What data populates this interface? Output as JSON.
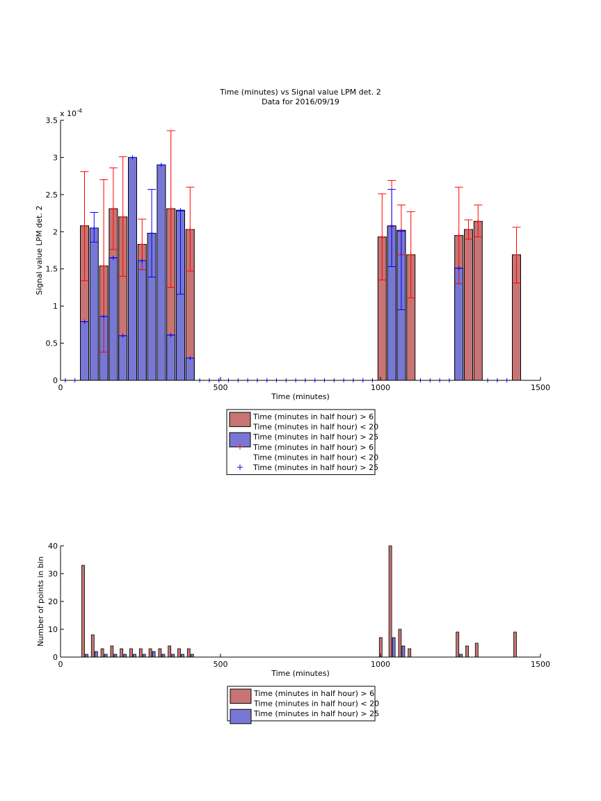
{
  "chart_data": [
    {
      "type": "bar",
      "title": "Time (minutes) vs Signal value LPM det. 2",
      "subtitle": "Data for 2016/09/19",
      "xlabel": "Time (minutes)",
      "ylabel": "Signal value LPM det. 2",
      "y_exponent_label": "x 10",
      "y_exponent_power": "-4",
      "xlim": [
        0,
        1500
      ],
      "ylim": [
        0,
        3.5
      ],
      "y_scale": 0.0001,
      "x_ticks": [
        "0",
        "500",
        "1000",
        "1500"
      ],
      "y_ticks": [
        "0",
        "0.5",
        "1",
        "1.5",
        "2",
        "2.5",
        "3",
        "3.5"
      ],
      "grid": false,
      "legend_position": "below",
      "legend": [
        {
          "label": "Time (minutes in half hour) > 6",
          "kind": "bar",
          "color": "#c87474"
        },
        {
          "label": "Time (minutes in half hour) < 20",
          "kind": "line",
          "color": "#000000"
        },
        {
          "label": "Time (minutes in half hour) > 25",
          "kind": "bar",
          "color": "#7878d4"
        },
        {
          "label": "Time (minutes in half hour) > 6",
          "kind": "marker",
          "color": "#ff0000"
        },
        {
          "label": "Time (minutes in half hour) < 20",
          "kind": "none",
          "color": "#ffffff"
        },
        {
          "label": "Time (minutes in half hour) > 25",
          "kind": "marker",
          "color": "#0000ff"
        }
      ],
      "series": [
        {
          "color": "#c87474",
          "marker_color": "#ff0000",
          "x": [
            75,
            135,
            165,
            195,
            255,
            345,
            405,
            1005,
            1035,
            1065,
            1095,
            1245,
            1275,
            1305,
            1425
          ],
          "values": [
            2.08,
            1.54,
            2.31,
            2.2,
            1.83,
            2.31,
            2.03,
            1.93,
            2.07,
            2.02,
            1.69,
            1.95,
            2.03,
            2.14,
            1.69
          ],
          "err_low": [
            1.34,
            0.38,
            1.76,
            1.4,
            1.49,
            1.25,
            1.47,
            1.35,
            1.53,
            1.69,
            1.11,
            1.3,
            1.9,
            1.93,
            1.31
          ],
          "err_high": [
            2.81,
            2.7,
            2.86,
            3.01,
            2.17,
            3.36,
            2.6,
            2.51,
            2.69,
            2.36,
            2.27,
            2.6,
            2.16,
            2.36,
            2.06
          ]
        },
        {
          "color": "#7878d4",
          "marker_color": "#0000ff",
          "x": [
            75,
            105,
            135,
            165,
            195,
            225,
            255,
            285,
            315,
            345,
            375,
            405,
            1035,
            1065,
            1245
          ],
          "values": [
            0.79,
            2.05,
            0.86,
            1.65,
            0.6,
            3.0,
            1.61,
            1.98,
            2.9,
            0.61,
            2.29,
            0.3,
            2.08,
            2.01,
            1.51
          ],
          "err_low": [
            0.79,
            1.86,
            0.86,
            1.65,
            0.6,
            3.0,
            1.61,
            1.39,
            2.9,
            0.61,
            1.16,
            0.3,
            1.53,
            0.95,
            1.51
          ],
          "err_high": [
            0.79,
            2.26,
            0.86,
            1.65,
            0.6,
            3.0,
            1.61,
            2.57,
            2.9,
            0.61,
            2.28,
            0.3,
            2.57,
            2.01,
            1.51
          ]
        }
      ],
      "baseline_markers_x": [
        15,
        45,
        435,
        465,
        495,
        525,
        555,
        585,
        615,
        645,
        675,
        705,
        735,
        765,
        795,
        825,
        855,
        885,
        915,
        945,
        975,
        1125,
        1155,
        1185,
        1215,
        1335,
        1365,
        1395
      ]
    },
    {
      "type": "bar",
      "xlabel": "Time (minutes)",
      "ylabel": "Number of points in bin",
      "xlim": [
        0,
        1500
      ],
      "ylim": [
        0,
        40
      ],
      "x_ticks": [
        "0",
        "500",
        "1000",
        "1500"
      ],
      "y_ticks": [
        "0",
        "10",
        "20",
        "30",
        "40"
      ],
      "grid": false,
      "legend_position": "below",
      "legend": [
        {
          "label": "Time (minutes in half hour) > 6",
          "kind": "bar",
          "color": "#c87474"
        },
        {
          "label": "Time (minutes in half hour) < 20",
          "kind": "line",
          "color": "#000000"
        },
        {
          "label": "Time (minutes in half hour) > 25",
          "kind": "bar",
          "color": "#7878d4"
        }
      ],
      "series": [
        {
          "color": "#c87474",
          "x": [
            75,
            105,
            135,
            165,
            195,
            225,
            255,
            285,
            315,
            345,
            375,
            405,
            1005,
            1035,
            1065,
            1095,
            1245,
            1275,
            1305,
            1425
          ],
          "values": [
            33,
            8,
            3,
            4,
            3,
            3,
            3,
            3,
            3,
            4,
            3,
            3,
            7,
            40,
            10,
            3,
            9,
            4,
            5,
            9
          ]
        },
        {
          "color": "#7878d4",
          "x": [
            75,
            105,
            135,
            165,
            195,
            225,
            255,
            285,
            315,
            345,
            375,
            405,
            1035,
            1065,
            1245
          ],
          "values": [
            1,
            2,
            1,
            1,
            1,
            1,
            1,
            2,
            1,
            1,
            1,
            1,
            7,
            4,
            1
          ]
        }
      ]
    }
  ]
}
